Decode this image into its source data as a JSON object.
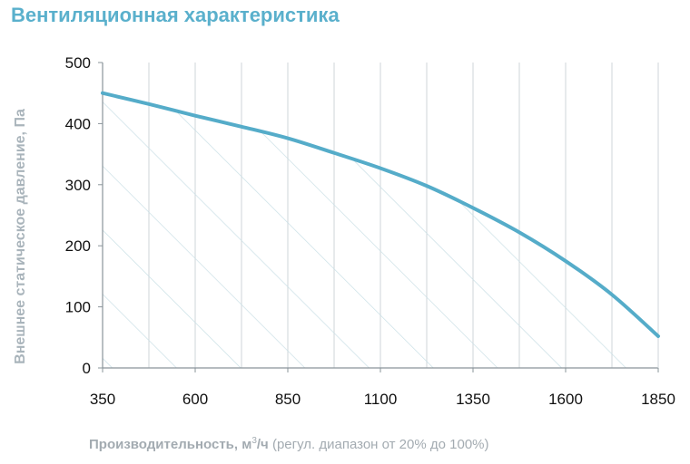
{
  "title": "Вентиляционная характеристика",
  "chart_data": {
    "type": "area",
    "title": "Вентиляционная характеристика",
    "xlabel": {
      "main": "Производительность, м",
      "sup": "3",
      "unit_suffix": "/ч",
      "note": "(регул. диапазон от 20% до 100%)"
    },
    "ylabel": "Внешнее статическое давление, Па",
    "xlim": [
      350,
      1850
    ],
    "ylim": [
      0,
      500
    ],
    "x_ticks": [
      350,
      600,
      850,
      1100,
      1350,
      1600,
      1850
    ],
    "y_ticks": [
      0,
      100,
      200,
      300,
      400,
      500
    ],
    "grid": {
      "vertical": true,
      "horizontal": false
    },
    "fill": "hatched",
    "series": [
      {
        "color": "#55acc9",
        "x": [
          350,
          475,
          600,
          725,
          850,
          975,
          1100,
          1225,
          1350,
          1475,
          1600,
          1725,
          1850
        ],
        "y": [
          450,
          432,
          413,
          395,
          376,
          352,
          327,
          298,
          262,
          222,
          175,
          120,
          52
        ]
      }
    ]
  }
}
